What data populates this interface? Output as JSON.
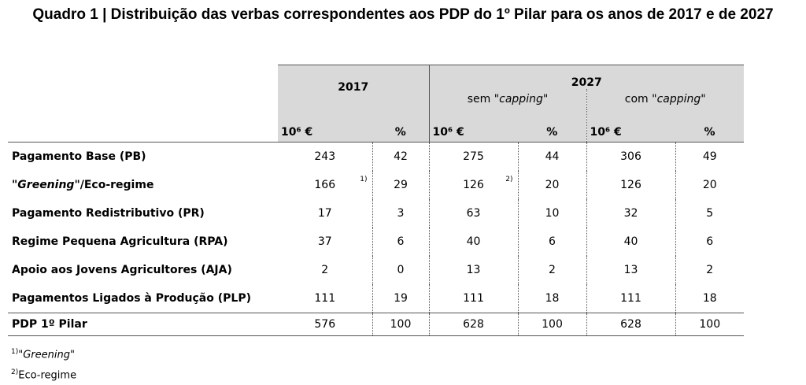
{
  "title": "Quadro 1 | Distribuição das verbas correspondentes aos PDP do 1º Pilar para os anos de 2017 e de 2027",
  "table": {
    "year_a": "2017",
    "year_b": "2027",
    "scenarios": [
      {
        "prefix": "sem \"",
        "em": "capping",
        "suffix": "\""
      },
      {
        "prefix": "com \"",
        "em": "capping",
        "suffix": "\""
      }
    ],
    "unit": "10⁶ €",
    "percent": "%",
    "rows": [
      {
        "label": {
          "prefix": "Pagamento Base (PB)"
        },
        "values": [
          243,
          42,
          275,
          44,
          306,
          49
        ]
      },
      {
        "label": {
          "prefix": "\"",
          "em": "Greening",
          "suffix": "\"/Eco-regime"
        },
        "values": [
          166,
          29,
          126,
          20,
          126,
          20
        ],
        "notes": [
          "1)",
          null,
          "2)",
          null,
          null,
          null
        ]
      },
      {
        "label": {
          "prefix": "Pagamento Redistributivo (PR)"
        },
        "values": [
          17,
          3,
          63,
          10,
          32,
          5
        ]
      },
      {
        "label": {
          "prefix": "Regime Pequena Agricultura (RPA)"
        },
        "values": [
          37,
          6,
          40,
          6,
          40,
          6
        ]
      },
      {
        "label": {
          "prefix": "Apoio aos Jovens Agricultores (AJA)"
        },
        "values": [
          2,
          0,
          13,
          2,
          13,
          2
        ]
      },
      {
        "label": {
          "prefix": "Pagamentos Ligados à Produção (PLP)"
        },
        "values": [
          111,
          19,
          111,
          18,
          111,
          18
        ]
      },
      {
        "label": {
          "prefix": "PDP 1º Pilar"
        },
        "values": [
          576,
          100,
          628,
          100,
          628,
          100
        ]
      }
    ]
  },
  "footnotes": [
    {
      "mark": "1)",
      "prefix": "\"",
      "em": "Greening",
      "suffix": "\""
    },
    {
      "mark": "2)",
      "prefix": "Eco-regime"
    }
  ]
}
